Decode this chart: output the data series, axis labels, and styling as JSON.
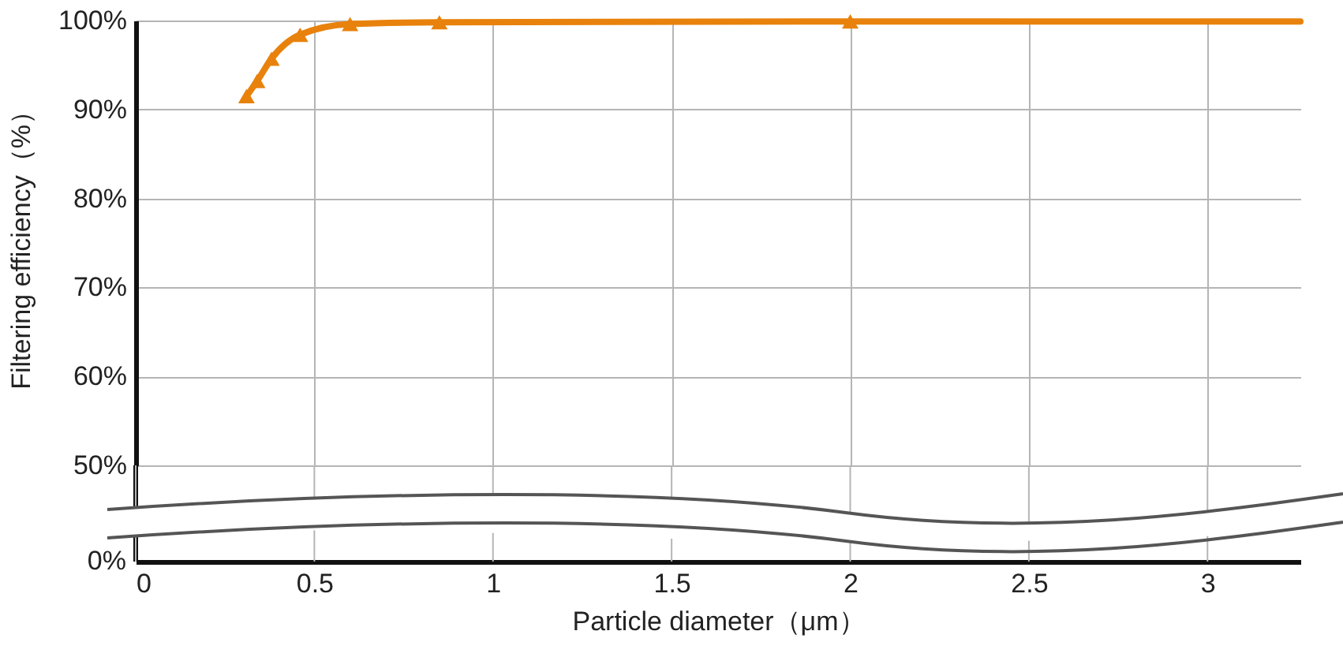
{
  "chart_data": {
    "type": "line",
    "xlabel": "Particle diameter（μm）",
    "ylabel": "Filtering efficiency（%）",
    "xlim": [
      0,
      3.26
    ],
    "xticks": [
      0,
      0.5,
      1,
      1.5,
      2,
      2.5,
      3
    ],
    "ylim": [
      50,
      100
    ],
    "yticks": [
      {
        "value": 50,
        "label": "50%"
      },
      {
        "value": 60,
        "label": "60%"
      },
      {
        "value": 70,
        "label": "70%"
      },
      {
        "value": 80,
        "label": "80%"
      },
      {
        "value": 90,
        "label": "90%"
      },
      {
        "value": 100,
        "label": "100%"
      }
    ],
    "grid": true,
    "annotations": [
      "0%"
    ],
    "series": [
      {
        "color": "#e8820c",
        "marker": "triangle",
        "x": [
          0.31,
          0.34,
          0.38,
          0.46,
          0.6,
          0.85,
          2
        ],
        "values": [
          91.5,
          93.2,
          95.7,
          98.4,
          99.6,
          99.8,
          99.9
        ]
      },
      {
        "color": "#e8820c",
        "marker": "none",
        "x": [
          2,
          3.26
        ],
        "values": [
          99.9,
          99.9
        ]
      }
    ]
  }
}
